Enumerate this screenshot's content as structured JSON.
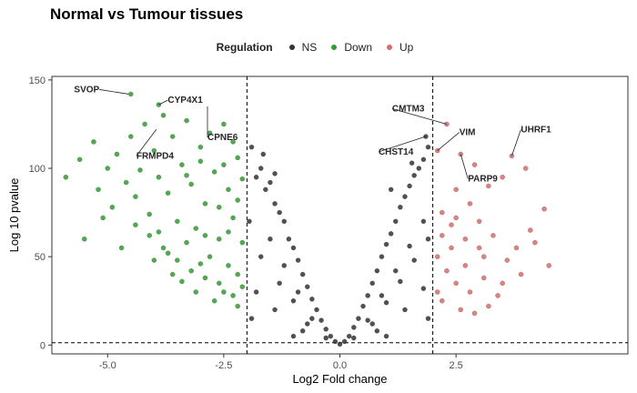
{
  "title": "Normal vs Tumour tissues",
  "legend": {
    "title": "Regulation",
    "items": [
      {
        "label": "NS",
        "color": "#333333"
      },
      {
        "label": "Down",
        "color": "#2e9e2e"
      },
      {
        "label": "Up",
        "color": "#d96b6b"
      }
    ]
  },
  "chart_data": {
    "type": "scatter",
    "title": "Normal vs Tumour tissues",
    "xlabel": "Log2 Fold change",
    "ylabel": "Log 10 pvalue",
    "xlim": [
      -6.2,
      6.2
    ],
    "ylim": [
      -5,
      152
    ],
    "xticks": [
      -5.0,
      -2.5,
      0.0,
      2.5
    ],
    "xtick_labels": [
      "-5.0",
      "-2.5",
      "0.0",
      "2.5"
    ],
    "yticks": [
      0,
      50,
      100,
      150
    ],
    "ytick_labels": [
      "0",
      "50",
      "100",
      "150"
    ],
    "threshold_lines": {
      "x": [
        -2,
        2
      ],
      "y": 1.3
    },
    "legend_position": "top",
    "grid": false,
    "series": [
      {
        "name": "Down",
        "color": "#2e9e2e",
        "points": [
          [
            -5.9,
            95
          ],
          [
            -5.6,
            105
          ],
          [
            -5.3,
            115
          ],
          [
            -5.2,
            88
          ],
          [
            -5.0,
            100
          ],
          [
            -4.9,
            78
          ],
          [
            -4.8,
            108
          ],
          [
            -4.6,
            92
          ],
          [
            -4.5,
            118
          ],
          [
            -4.4,
            84
          ],
          [
            -4.3,
            99
          ],
          [
            -4.2,
            125
          ],
          [
            -4.1,
            74
          ],
          [
            -4.0,
            110
          ],
          [
            -3.9,
            95
          ],
          [
            -3.8,
            130
          ],
          [
            -3.7,
            86
          ],
          [
            -3.6,
            118
          ],
          [
            -3.5,
            70
          ],
          [
            -3.4,
            102
          ],
          [
            -3.3,
            127
          ],
          [
            -3.2,
            91
          ],
          [
            -3.1,
            66
          ],
          [
            -3.0,
            112
          ],
          [
            -2.9,
            80
          ],
          [
            -2.8,
            120
          ],
          [
            -2.7,
            98
          ],
          [
            -2.6,
            60
          ],
          [
            -2.5,
            125
          ],
          [
            -2.4,
            88
          ],
          [
            -2.3,
            72
          ],
          [
            -2.2,
            106
          ],
          [
            -2.1,
            58
          ],
          [
            -3.8,
            55
          ],
          [
            -3.5,
            48
          ],
          [
            -3.2,
            42
          ],
          [
            -2.9,
            38
          ],
          [
            -2.6,
            35
          ],
          [
            -2.4,
            45
          ],
          [
            -2.2,
            40
          ],
          [
            -4.1,
            62
          ],
          [
            -3.7,
            52
          ],
          [
            -3.3,
            58
          ],
          [
            -2.8,
            50
          ],
          [
            -2.5,
            30
          ],
          [
            -2.3,
            28
          ],
          [
            -2.1,
            33
          ],
          [
            -3.0,
            46
          ],
          [
            -4.4,
            68
          ],
          [
            -3.9,
            64
          ],
          [
            -5.1,
            72
          ],
          [
            -5.5,
            60
          ],
          [
            -4.7,
            55
          ],
          [
            -3.6,
            40
          ],
          [
            -3.1,
            30
          ],
          [
            -2.7,
            25
          ],
          [
            -2.2,
            22
          ],
          [
            -4.0,
            48
          ],
          [
            -3.4,
            36
          ],
          [
            -2.9,
            62
          ],
          [
            -4.5,
            142
          ],
          [
            -3.9,
            136
          ],
          [
            -3.0,
            104
          ],
          [
            -3.3,
            96
          ],
          [
            -2.6,
            78
          ],
          [
            -2.4,
            64
          ],
          [
            -2.2,
            82
          ],
          [
            -2.1,
            94
          ],
          [
            -2.3,
            115
          ],
          [
            -2.5,
            102
          ]
        ],
        "labels": [
          {
            "text": "SVOP",
            "x": -4.55,
            "y": 142
          },
          {
            "text": "CYP4X1",
            "x": -3.9,
            "y": 136
          },
          {
            "text": "FRMPD4",
            "x": -3.95,
            "y": 122
          },
          {
            "text": "CPNE6",
            "x": -2.85,
            "y": 135
          }
        ]
      },
      {
        "name": "NS",
        "color": "#333333",
        "points": [
          [
            -1.9,
            112
          ],
          [
            -1.8,
            95
          ],
          [
            -1.7,
            100
          ],
          [
            -1.6,
            88
          ],
          [
            -1.5,
            92
          ],
          [
            -1.4,
            80
          ],
          [
            -1.3,
            75
          ],
          [
            -1.2,
            70
          ],
          [
            -1.1,
            60
          ],
          [
            -1.0,
            55
          ],
          [
            -0.9,
            48
          ],
          [
            -0.8,
            40
          ],
          [
            -0.7,
            33
          ],
          [
            -0.6,
            26
          ],
          [
            -0.5,
            20
          ],
          [
            -0.4,
            14
          ],
          [
            -0.3,
            9
          ],
          [
            -0.2,
            5
          ],
          [
            -0.1,
            2
          ],
          [
            0.0,
            0.5
          ],
          [
            0.1,
            2
          ],
          [
            0.2,
            5
          ],
          [
            0.3,
            10
          ],
          [
            0.4,
            15
          ],
          [
            0.5,
            22
          ],
          [
            0.6,
            28
          ],
          [
            0.7,
            35
          ],
          [
            0.8,
            42
          ],
          [
            0.9,
            50
          ],
          [
            1.0,
            57
          ],
          [
            1.1,
            63
          ],
          [
            1.2,
            70
          ],
          [
            1.3,
            78
          ],
          [
            1.4,
            84
          ],
          [
            1.5,
            90
          ],
          [
            1.6,
            96
          ],
          [
            1.7,
            100
          ],
          [
            1.8,
            105
          ],
          [
            1.9,
            112
          ],
          [
            -1.95,
            70
          ],
          [
            -1.5,
            60
          ],
          [
            -1.2,
            45
          ],
          [
            -0.9,
            30
          ],
          [
            -0.6,
            15
          ],
          [
            -0.3,
            4
          ],
          [
            0.3,
            4
          ],
          [
            0.6,
            14
          ],
          [
            0.9,
            28
          ],
          [
            1.2,
            42
          ],
          [
            1.5,
            56
          ],
          [
            1.8,
            70
          ],
          [
            -1.7,
            50
          ],
          [
            -1.3,
            35
          ],
          [
            -1.0,
            25
          ],
          [
            -0.7,
            12
          ],
          [
            0.7,
            12
          ],
          [
            1.0,
            24
          ],
          [
            1.3,
            36
          ],
          [
            1.6,
            48
          ],
          [
            1.9,
            60
          ],
          [
            -1.8,
            30
          ],
          [
            -1.4,
            20
          ],
          [
            -0.8,
            8
          ],
          [
            0.8,
            8
          ],
          [
            1.4,
            20
          ],
          [
            1.8,
            32
          ],
          [
            -1.9,
            15
          ],
          [
            1.9,
            15
          ],
          [
            -1.0,
            5
          ],
          [
            1.0,
            5
          ],
          [
            1.85,
            118
          ],
          [
            1.55,
            103
          ],
          [
            -1.65,
            108
          ],
          [
            1.1,
            88
          ],
          [
            -1.4,
            97
          ]
        ],
        "labels": [
          {
            "text": "CHST14",
            "x": 1.85,
            "y": 118
          }
        ]
      },
      {
        "name": "Up",
        "color": "#d96b6b",
        "points": [
          [
            2.1,
            110
          ],
          [
            2.3,
            125
          ],
          [
            2.6,
            108
          ],
          [
            3.7,
            107
          ],
          [
            4.4,
            77
          ],
          [
            4.0,
            100
          ],
          [
            3.5,
            95
          ],
          [
            3.2,
            90
          ],
          [
            2.9,
            102
          ],
          [
            2.5,
            88
          ],
          [
            2.2,
            75
          ],
          [
            2.4,
            68
          ],
          [
            2.7,
            60
          ],
          [
            3.0,
            55
          ],
          [
            3.3,
            62
          ],
          [
            3.6,
            48
          ],
          [
            3.9,
            40
          ],
          [
            4.2,
            58
          ],
          [
            4.5,
            45
          ],
          [
            2.1,
            50
          ],
          [
            2.3,
            42
          ],
          [
            2.5,
            35
          ],
          [
            2.8,
            30
          ],
          [
            3.1,
            38
          ],
          [
            3.4,
            28
          ],
          [
            2.2,
            25
          ],
          [
            2.6,
            20
          ],
          [
            2.9,
            18
          ],
          [
            3.2,
            22
          ],
          [
            2.1,
            30
          ],
          [
            2.4,
            55
          ],
          [
            2.7,
            45
          ],
          [
            3.0,
            70
          ],
          [
            2.2,
            62
          ],
          [
            2.5,
            72
          ],
          [
            2.8,
            80
          ],
          [
            3.1,
            50
          ],
          [
            3.5,
            35
          ],
          [
            3.8,
            55
          ],
          [
            4.1,
            65
          ]
        ],
        "labels": [
          {
            "text": "CMTM3",
            "x": 2.3,
            "y": 125
          },
          {
            "text": "VIM",
            "x": 2.1,
            "y": 110
          },
          {
            "text": "UHRF1",
            "x": 3.7,
            "y": 107
          },
          {
            "text": "PARP9",
            "x": 2.6,
            "y": 108
          }
        ]
      }
    ]
  }
}
